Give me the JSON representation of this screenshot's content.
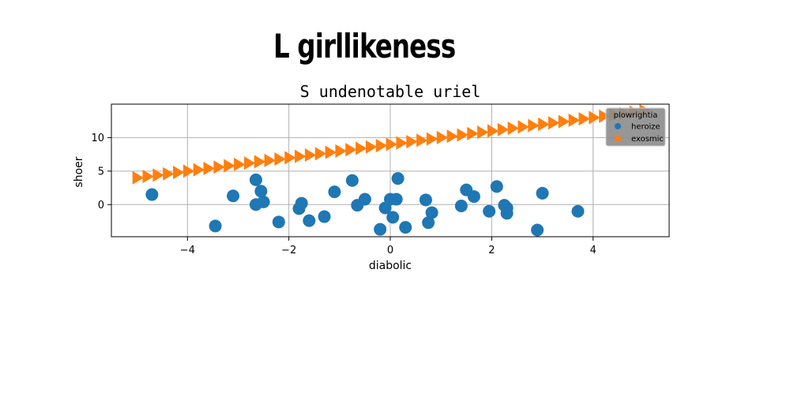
{
  "page": {
    "title": "L girllikeness"
  },
  "chart_data": {
    "type": "scatter",
    "title": "S undenotable uriel",
    "xlabel": "diabolic",
    "ylabel": "shoer",
    "xlim": [
      -5.5,
      5.5
    ],
    "ylim": [
      -4.8,
      15
    ],
    "xticks": [
      -4,
      -2,
      0,
      2,
      4
    ],
    "yticks": [
      0,
      5,
      10
    ],
    "xtick_labels": [
      "−4",
      "−2",
      "0",
      "2",
      "4"
    ],
    "ytick_labels": [
      "0",
      "5",
      "10"
    ],
    "grid": true,
    "legend": {
      "title": "plowrightia",
      "placement": "top-right"
    },
    "series": [
      {
        "name": "heroize",
        "marker": "circle",
        "color": "#1f77b4",
        "points": [
          [
            -4.7,
            1.5
          ],
          [
            -3.45,
            -3.2
          ],
          [
            -3.1,
            1.3
          ],
          [
            -2.65,
            3.7
          ],
          [
            -2.55,
            2.0
          ],
          [
            -2.65,
            0.0
          ],
          [
            -2.5,
            0.4
          ],
          [
            -2.2,
            -2.6
          ],
          [
            -1.8,
            -0.6
          ],
          [
            -1.75,
            0.2
          ],
          [
            -1.6,
            -2.4
          ],
          [
            -1.3,
            -1.8
          ],
          [
            -1.1,
            1.9
          ],
          [
            -0.75,
            3.6
          ],
          [
            -0.65,
            -0.1
          ],
          [
            -0.5,
            0.8
          ],
          [
            -0.2,
            -3.7
          ],
          [
            -0.1,
            -0.5
          ],
          [
            0.0,
            0.8
          ],
          [
            0.05,
            -1.9
          ],
          [
            0.12,
            0.8
          ],
          [
            0.15,
            3.9
          ],
          [
            0.3,
            -3.4
          ],
          [
            0.7,
            0.7
          ],
          [
            0.75,
            -2.7
          ],
          [
            0.82,
            -1.2
          ],
          [
            1.4,
            -0.2
          ],
          [
            1.5,
            2.2
          ],
          [
            1.65,
            1.2
          ],
          [
            1.95,
            -1.0
          ],
          [
            2.1,
            2.7
          ],
          [
            2.25,
            -0.1
          ],
          [
            2.3,
            -1.3
          ],
          [
            2.3,
            -0.5
          ],
          [
            2.9,
            -3.8
          ],
          [
            3.0,
            1.7
          ],
          [
            3.7,
            -1.0
          ]
        ]
      },
      {
        "name": "exosmic",
        "marker": "triangle-right",
        "color": "#ff7f0e",
        "points": [
          [
            -5.0,
            4.0
          ],
          [
            -4.8,
            4.2
          ],
          [
            -4.6,
            4.4
          ],
          [
            -4.4,
            4.6
          ],
          [
            -4.2,
            4.8
          ],
          [
            -4.0,
            5.0
          ],
          [
            -3.8,
            5.2
          ],
          [
            -3.6,
            5.4
          ],
          [
            -3.4,
            5.6
          ],
          [
            -3.2,
            5.8
          ],
          [
            -3.0,
            6.0
          ],
          [
            -2.8,
            6.2
          ],
          [
            -2.6,
            6.4
          ],
          [
            -2.4,
            6.6
          ],
          [
            -2.2,
            6.8
          ],
          [
            -2.0,
            7.0
          ],
          [
            -1.8,
            7.2
          ],
          [
            -1.6,
            7.4
          ],
          [
            -1.4,
            7.6
          ],
          [
            -1.2,
            7.8
          ],
          [
            -1.0,
            8.0
          ],
          [
            -0.8,
            8.2
          ],
          [
            -0.6,
            8.4
          ],
          [
            -0.4,
            8.6
          ],
          [
            -0.2,
            8.8
          ],
          [
            0.0,
            9.0
          ],
          [
            0.2,
            9.2
          ],
          [
            0.4,
            9.4
          ],
          [
            0.6,
            9.6
          ],
          [
            0.8,
            9.8
          ],
          [
            1.0,
            10.0
          ],
          [
            1.2,
            10.2
          ],
          [
            1.4,
            10.4
          ],
          [
            1.6,
            10.6
          ],
          [
            1.8,
            10.8
          ],
          [
            2.0,
            11.0
          ],
          [
            2.2,
            11.2
          ],
          [
            2.4,
            11.4
          ],
          [
            2.6,
            11.6
          ],
          [
            2.8,
            11.8
          ],
          [
            3.0,
            12.0
          ],
          [
            3.2,
            12.2
          ],
          [
            3.4,
            12.4
          ],
          [
            3.6,
            12.6
          ],
          [
            3.8,
            12.8
          ],
          [
            4.0,
            13.0
          ],
          [
            4.2,
            13.2
          ],
          [
            4.4,
            13.4
          ],
          [
            4.6,
            13.6
          ],
          [
            4.8,
            13.8
          ],
          [
            5.0,
            14.0
          ]
        ]
      }
    ]
  }
}
